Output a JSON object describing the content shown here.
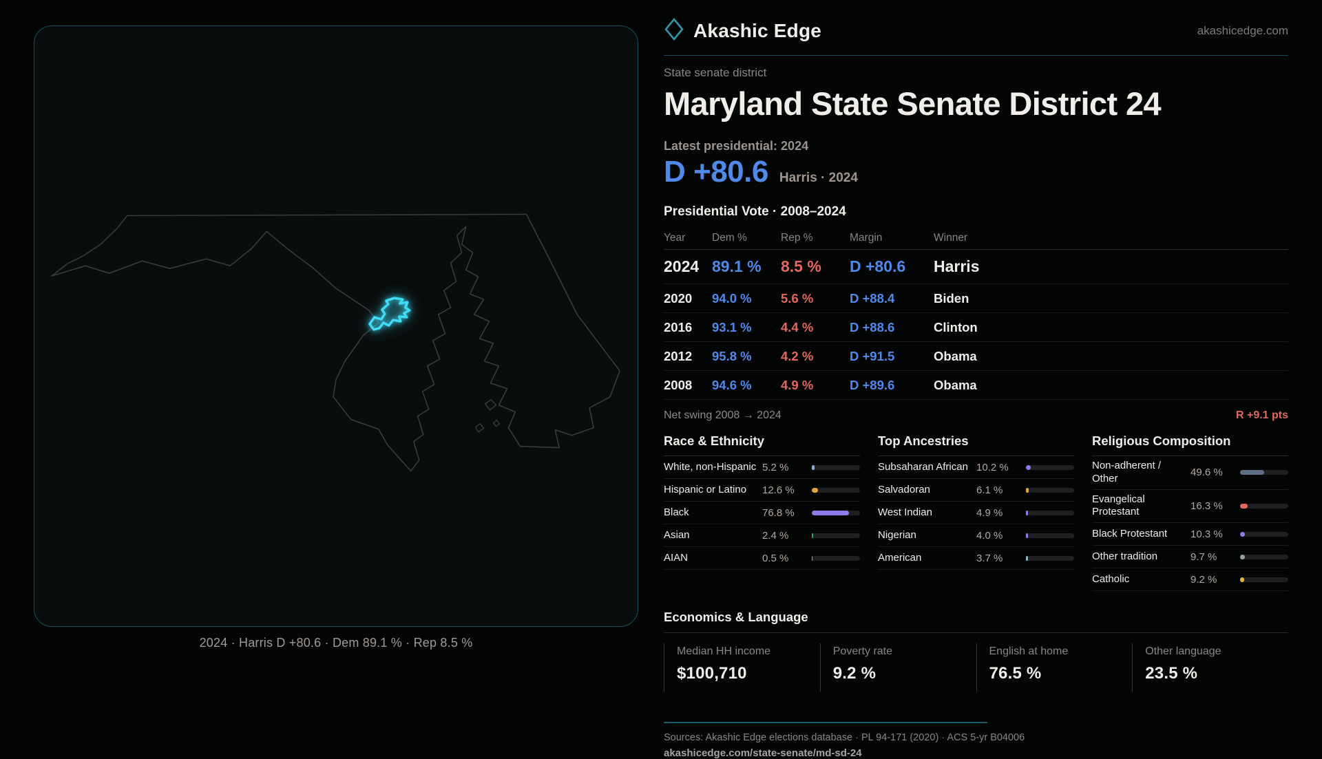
{
  "brand": {
    "name": "Akashic Edge",
    "domain": "akashicedge.com"
  },
  "page": {
    "kicker": "State senate district",
    "title": "Maryland State Senate District 24",
    "latest_label": "Latest presidential: 2024",
    "headline_margin": "D +80.6",
    "headline_context": "Harris · 2024"
  },
  "vote_table": {
    "title": "Presidential Vote · 2008–2024",
    "columns": [
      "Year",
      "Dem %",
      "Rep %",
      "Margin",
      "Winner"
    ],
    "rows": [
      {
        "year": "2024",
        "dem": "89.1 %",
        "rep": "8.5 %",
        "margin": "D +80.6",
        "winner": "Harris",
        "highlight": true
      },
      {
        "year": "2020",
        "dem": "94.0 %",
        "rep": "5.6 %",
        "margin": "D +88.4",
        "winner": "Biden",
        "highlight": false
      },
      {
        "year": "2016",
        "dem": "93.1 %",
        "rep": "4.4 %",
        "margin": "D +88.6",
        "winner": "Clinton",
        "highlight": false
      },
      {
        "year": "2012",
        "dem": "95.8 %",
        "rep": "4.2 %",
        "margin": "D +91.5",
        "winner": "Obama",
        "highlight": false
      },
      {
        "year": "2008",
        "dem": "94.6 %",
        "rep": "4.9 %",
        "margin": "D +89.6",
        "winner": "Obama",
        "highlight": false
      }
    ],
    "net_swing_label": "Net swing 2008 → 2024",
    "net_swing_value": "R +9.1 pts"
  },
  "demographics": [
    {
      "title": "Race & Ethnicity",
      "rows": [
        {
          "label": "White, non-Hispanic",
          "value": "5.2 %",
          "pct": 5.2,
          "color": "#8fa9da"
        },
        {
          "label": "Hispanic or Latino",
          "value": "12.6 %",
          "pct": 12.6,
          "color": "#e2a33d"
        },
        {
          "label": "Black",
          "value": "76.8 %",
          "pct": 76.8,
          "color": "#8f7ceb"
        },
        {
          "label": "Asian",
          "value": "2.4 %",
          "pct": 2.4,
          "color": "#2fa878"
        },
        {
          "label": "AIAN",
          "value": "0.5 %",
          "pct": 0.5,
          "color": "#9aa0a8"
        }
      ]
    },
    {
      "title": "Top Ancestries",
      "rows": [
        {
          "label": "Subsaharan African",
          "value": "10.2 %",
          "pct": 10.2,
          "color": "#8f7ceb"
        },
        {
          "label": "Salvadoran",
          "value": "6.1 %",
          "pct": 6.1,
          "color": "#e2a33d"
        },
        {
          "label": "West Indian",
          "value": "4.9 %",
          "pct": 4.9,
          "color": "#8f7ceb"
        },
        {
          "label": "Nigerian",
          "value": "4.0 %",
          "pct": 4.0,
          "color": "#8f7ceb"
        },
        {
          "label": "American",
          "value": "3.7 %",
          "pct": 3.7,
          "color": "#86b5c9"
        }
      ]
    },
    {
      "title": "Religious Composition",
      "rows": [
        {
          "label": "Non-adherent / Other",
          "value": "49.6 %",
          "pct": 49.6,
          "color": "#5d6e84"
        },
        {
          "label": "Evangelical Protestant",
          "value": "16.3 %",
          "pct": 16.3,
          "color": "#e06a60"
        },
        {
          "label": "Black Protestant",
          "value": "10.3 %",
          "pct": 10.3,
          "color": "#8f7ceb"
        },
        {
          "label": "Other tradition",
          "value": "9.7 %",
          "pct": 9.7,
          "color": "#9aa0a8"
        },
        {
          "label": "Catholic",
          "value": "9.2 %",
          "pct": 9.2,
          "color": "#e8b23c"
        }
      ]
    }
  ],
  "economics": {
    "title": "Economics & Language",
    "stats": [
      {
        "label": "Median HH income",
        "value": "$100,710"
      },
      {
        "label": "Poverty rate",
        "value": "9.2 %"
      },
      {
        "label": "English at home",
        "value": "76.5 %"
      },
      {
        "label": "Other language",
        "value": "23.5 %"
      }
    ]
  },
  "map": {
    "caption": "2024 · Harris D +80.6 · Dem 89.1 % · Rep 8.5 %"
  },
  "footer": {
    "sources": "Sources: Akashic Edge elections database · PL 94-171 (2020) · ACS 5-yr B04006",
    "permalink": "akashicedge.com/state-senate/md-sd-24"
  },
  "colors": {
    "accent_teal": "#2e97a8",
    "dem_blue": "#5089ea",
    "rep_red": "#e2685e",
    "district_cyan": "#3edcf5",
    "value_tan": "#b6a99e"
  }
}
